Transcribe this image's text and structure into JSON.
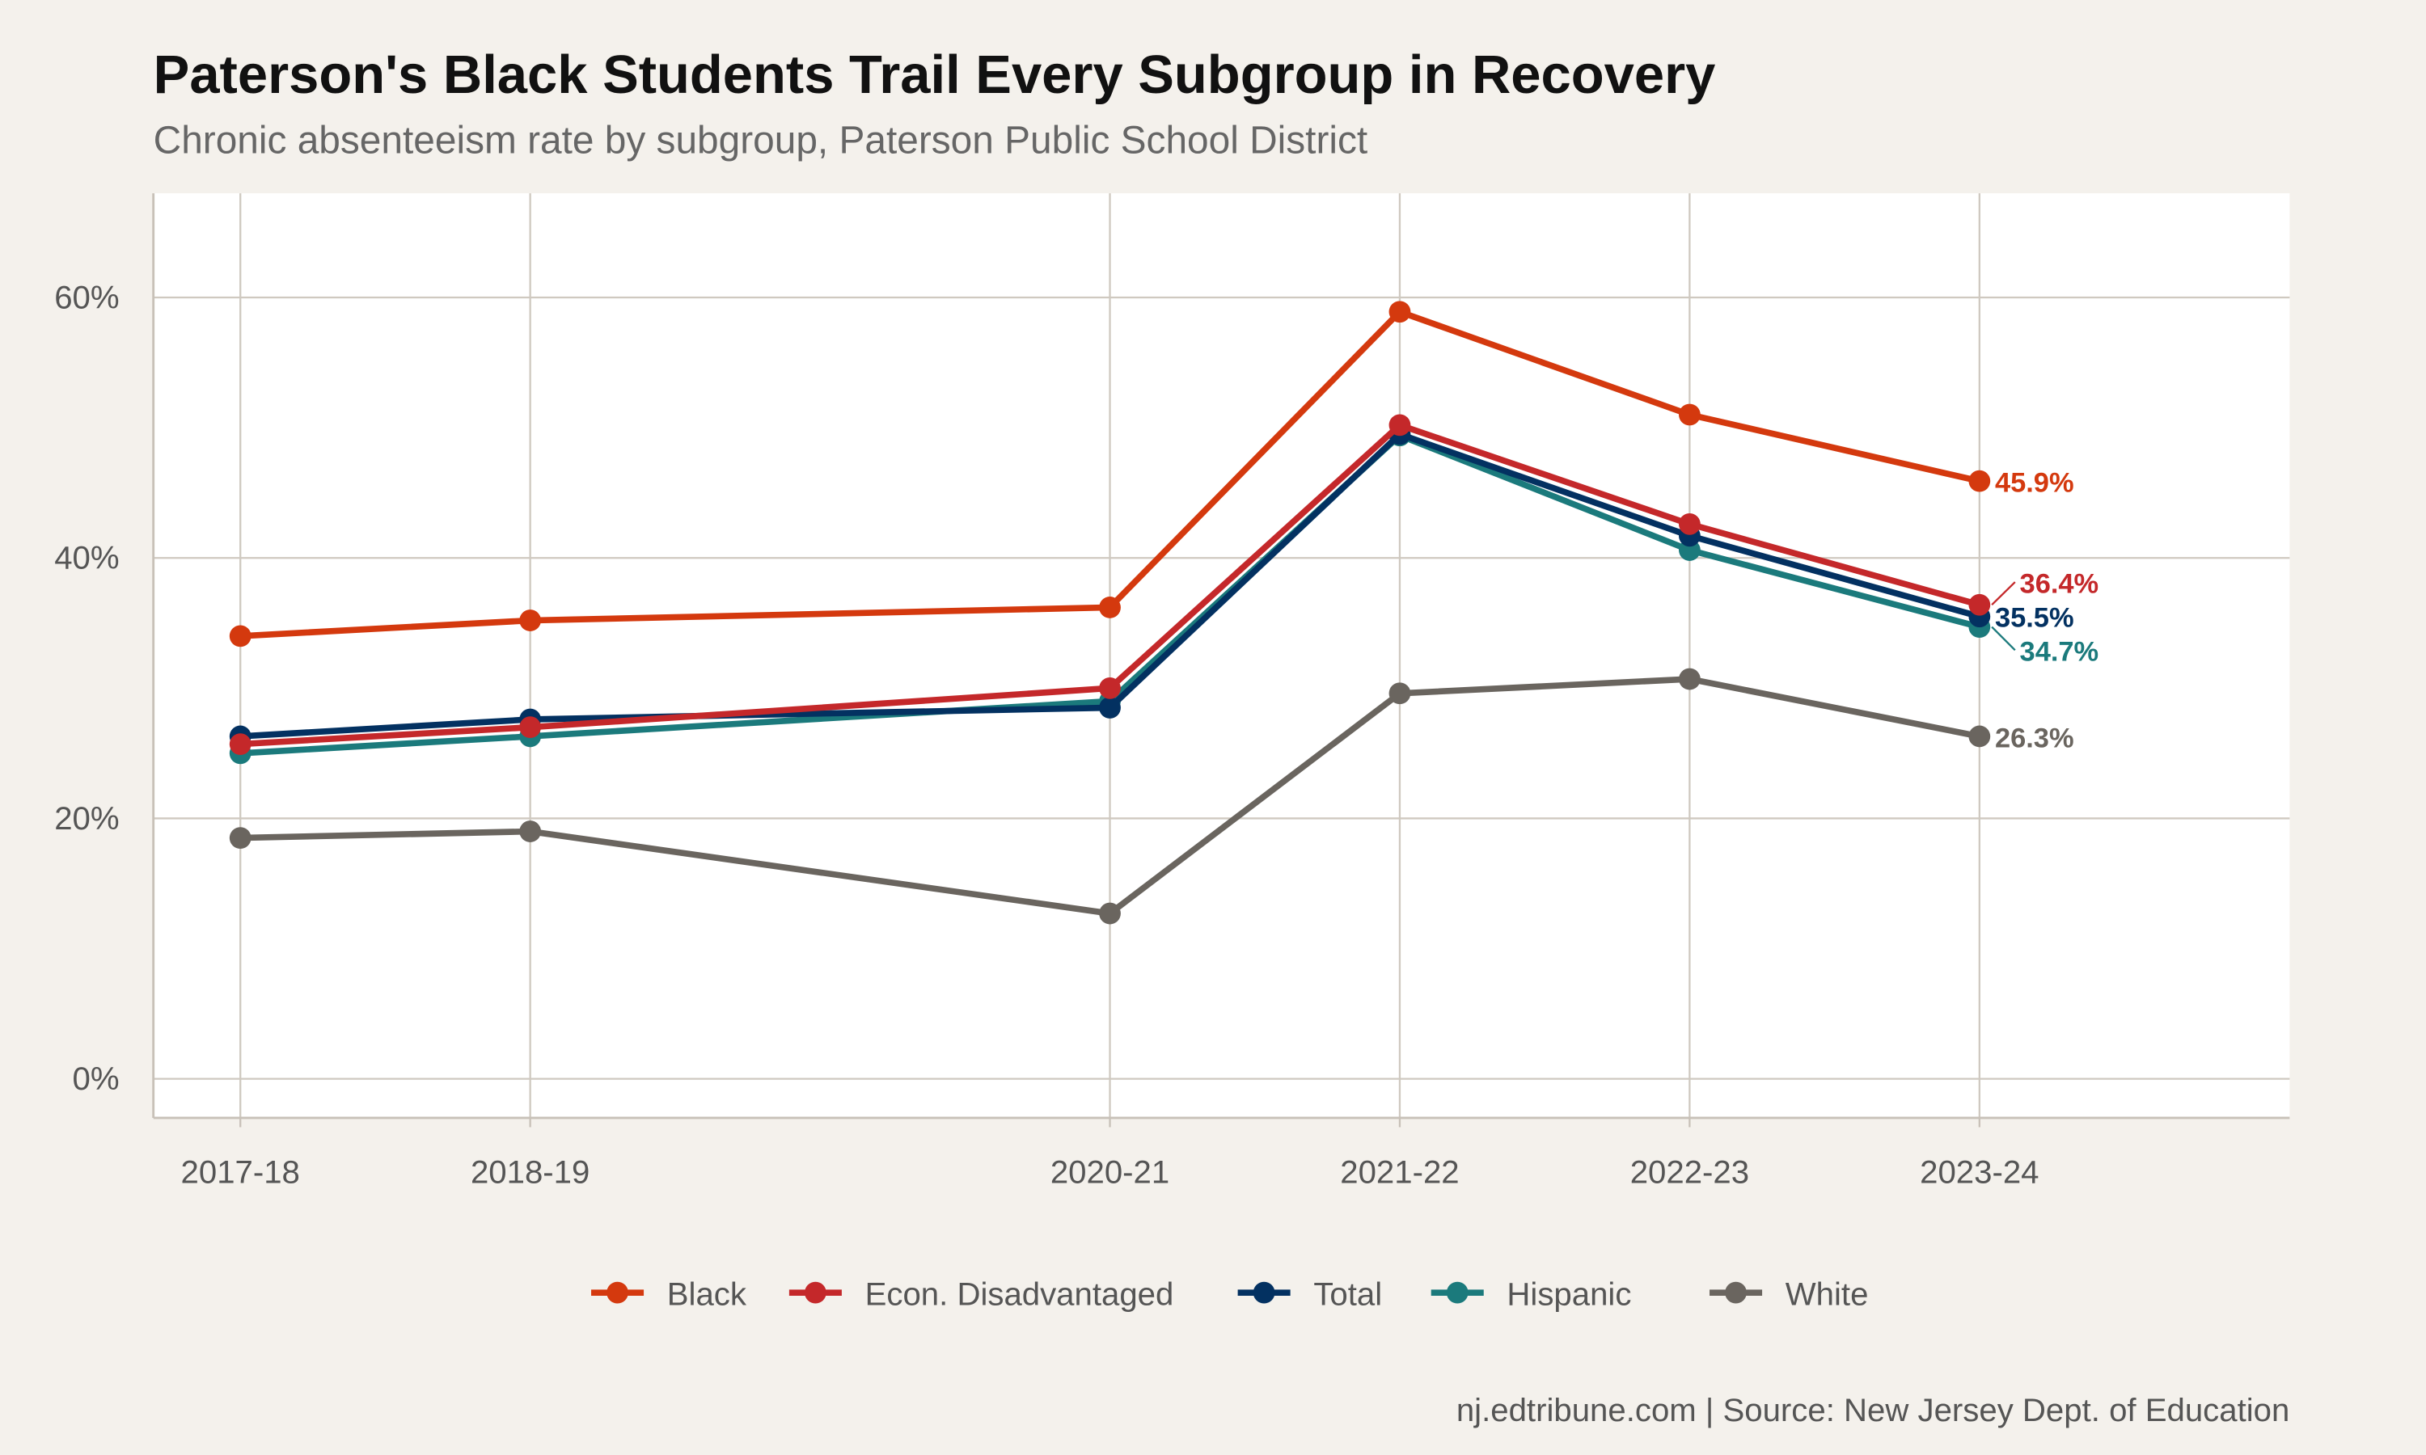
{
  "title": "Paterson's Black Students Trail Every Subgroup in Recovery",
  "subtitle": "Chronic absenteeism rate by subgroup, Paterson Public School District",
  "caption": "nj.edtribune.com | Source: New Jersey Dept. of Education",
  "chart_data": {
    "type": "line",
    "title": "Paterson's Black Students Trail Every Subgroup in Recovery",
    "subtitle": "Chronic absenteeism rate by subgroup, Paterson Public School District",
    "xlabel": "",
    "ylabel": "",
    "x": [
      "2017-18",
      "2018-19",
      "2020-21",
      "2021-22",
      "2022-23",
      "2023-24"
    ],
    "x_positions_years": [
      2017,
      2018,
      2020,
      2021,
      2022,
      2023
    ],
    "yticks": [
      "0%",
      "20%",
      "40%",
      "60%"
    ],
    "ytick_values": [
      0,
      20,
      40,
      60
    ],
    "ylim": [
      -3,
      68
    ],
    "grid": true,
    "legend_position": "bottom",
    "series": [
      {
        "name": "Black",
        "color": "#d4390e",
        "values": [
          34.0,
          35.2,
          36.2,
          58.9,
          51.0,
          45.9
        ],
        "end_label": "45.9%"
      },
      {
        "name": "Econ. Disadvantaged",
        "color": "#c4282a",
        "values": [
          25.7,
          27.0,
          30.0,
          50.2,
          42.6,
          36.4
        ],
        "end_label": "36.4%"
      },
      {
        "name": "Total",
        "color": "#033161",
        "values": [
          26.3,
          27.6,
          28.5,
          49.5,
          41.7,
          35.5
        ],
        "end_label": "35.5%"
      },
      {
        "name": "Hispanic",
        "color": "#1b7a7c",
        "values": [
          25.0,
          26.3,
          29.0,
          49.4,
          40.6,
          34.7
        ],
        "end_label": "34.7%"
      },
      {
        "name": "White",
        "color": "#6a655f",
        "values": [
          18.5,
          19.0,
          12.7,
          29.6,
          30.7,
          26.3
        ],
        "end_label": "26.3%"
      }
    ]
  }
}
